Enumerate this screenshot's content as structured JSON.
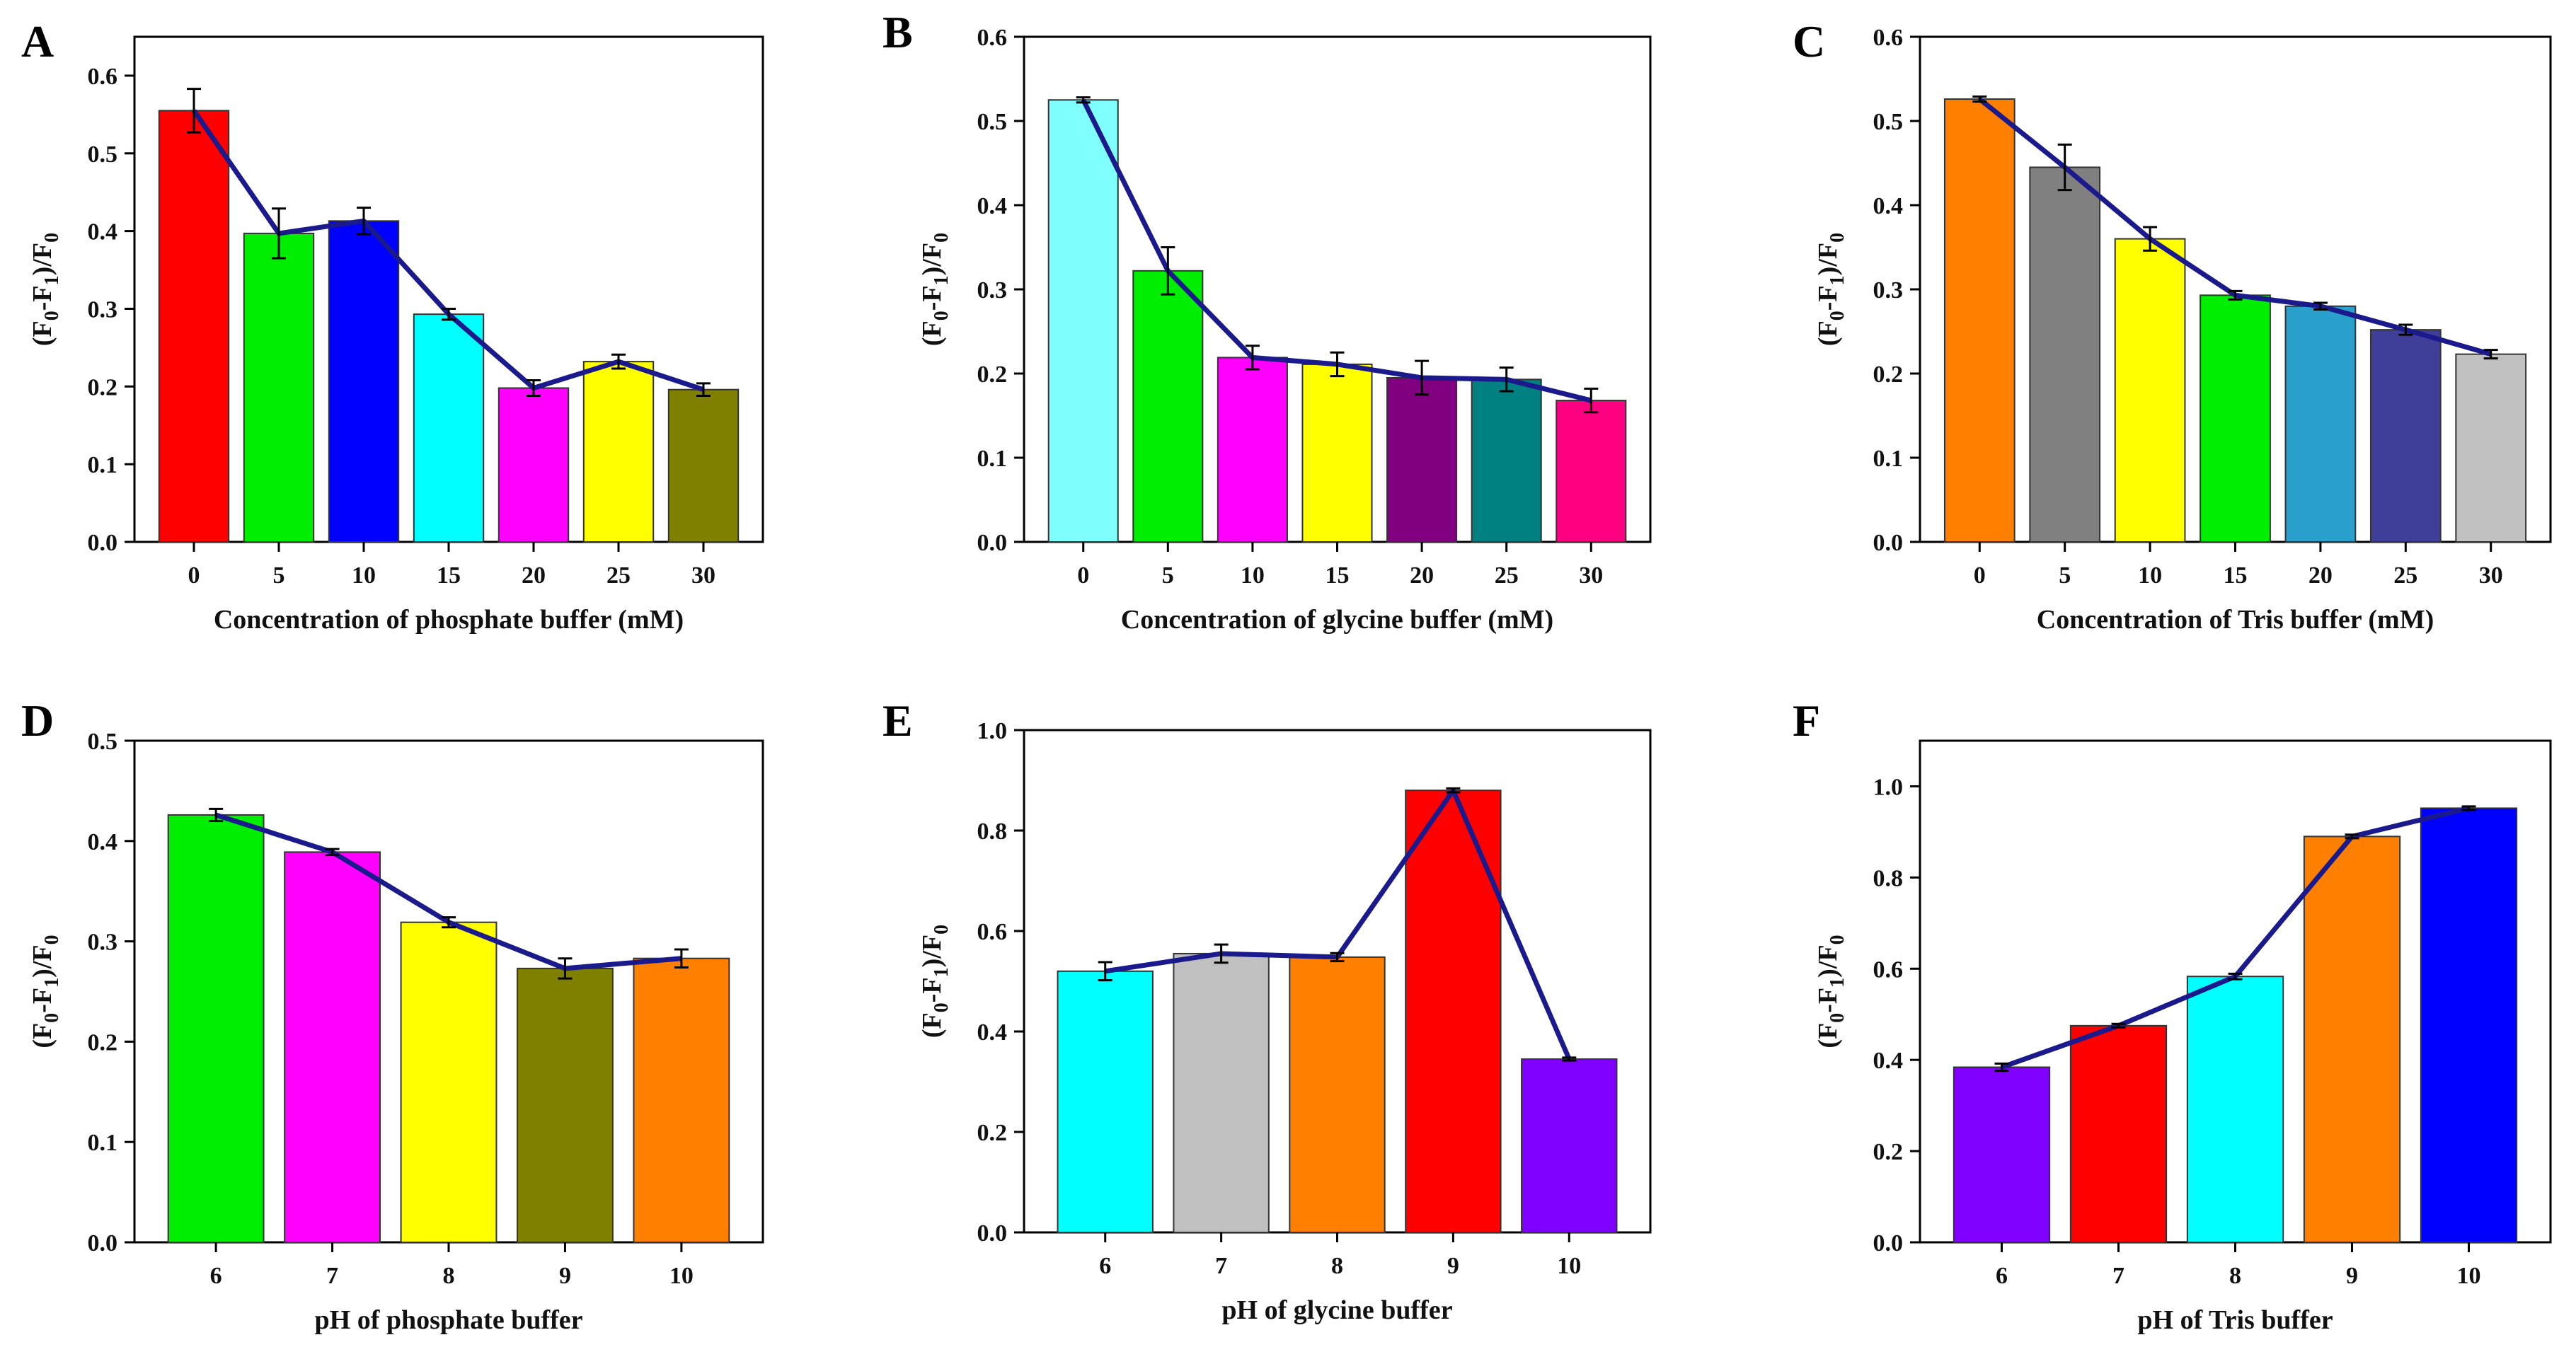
{
  "figure": {
    "line_color": "#1a1a8c",
    "bar_stroke": "#333333"
  },
  "chart_data": [
    {
      "panel": "A",
      "type": "bar",
      "categories": [
        "0",
        "5",
        "10",
        "15",
        "20",
        "25",
        "30"
      ],
      "values": [
        0.555,
        0.397,
        0.413,
        0.293,
        0.198,
        0.232,
        0.196
      ],
      "errors": [
        0.028,
        0.032,
        0.017,
        0.007,
        0.01,
        0.009,
        0.008
      ],
      "colors": [
        "#ff0000",
        "#00ee00",
        "#0000ff",
        "#00ffff",
        "#ff00ff",
        "#ffff00",
        "#808000"
      ],
      "xlabel": "Concentration of phosphate buffer (mM)",
      "ylabel_parts": [
        "(F",
        "0",
        "-F",
        "1",
        ")/F",
        "0"
      ],
      "ylim": [
        0,
        0.65
      ],
      "yticks": [
        "0.0",
        "0.1",
        "0.2",
        "0.3",
        "0.4",
        "0.5",
        "0.6"
      ],
      "ytick_values": [
        0,
        0.1,
        0.2,
        0.3,
        0.4,
        0.5,
        0.6
      ]
    },
    {
      "panel": "B",
      "type": "bar",
      "categories": [
        "0",
        "5",
        "10",
        "15",
        "20",
        "25",
        "30"
      ],
      "values": [
        0.525,
        0.322,
        0.219,
        0.211,
        0.195,
        0.193,
        0.168
      ],
      "errors": [
        0.003,
        0.028,
        0.014,
        0.014,
        0.02,
        0.014,
        0.014
      ],
      "colors": [
        "#80ffff",
        "#00ee00",
        "#ff00ff",
        "#ffff00",
        "#800080",
        "#008080",
        "#ff0080"
      ],
      "xlabel": "Concentration of glycine buffer (mM)",
      "ylabel_parts": [
        "(F",
        "0",
        "-F",
        "1",
        ")/F",
        "0"
      ],
      "ylim": [
        0,
        0.6
      ],
      "yticks": [
        "0.0",
        "0.1",
        "0.2",
        "0.3",
        "0.4",
        "0.5",
        "0.6"
      ],
      "ytick_values": [
        0,
        0.1,
        0.2,
        0.3,
        0.4,
        0.5,
        0.6
      ]
    },
    {
      "panel": "C",
      "type": "bar",
      "categories": [
        "0",
        "5",
        "10",
        "15",
        "20",
        "25",
        "30"
      ],
      "values": [
        0.526,
        0.445,
        0.36,
        0.293,
        0.28,
        0.252,
        0.223
      ],
      "errors": [
        0.003,
        0.027,
        0.014,
        0.005,
        0.004,
        0.006,
        0.005
      ],
      "colors": [
        "#ff8000",
        "#808080",
        "#ffff00",
        "#00ee00",
        "#2aa0cc",
        "#3f3f99",
        "#c0c0c0"
      ],
      "xlabel": "Concentration of Tris buffer (mM)",
      "ylabel_parts": [
        "(F",
        "0",
        "-F",
        "1",
        ")/F",
        "0"
      ],
      "ylim": [
        0,
        0.6
      ],
      "yticks": [
        "0.0",
        "0.1",
        "0.2",
        "0.3",
        "0.4",
        "0.5",
        "0.6"
      ],
      "ytick_values": [
        0,
        0.1,
        0.2,
        0.3,
        0.4,
        0.5,
        0.6
      ]
    },
    {
      "panel": "D",
      "type": "bar",
      "categories": [
        "6",
        "7",
        "8",
        "9",
        "10"
      ],
      "values": [
        0.426,
        0.389,
        0.319,
        0.273,
        0.283
      ],
      "errors": [
        0.006,
        0.003,
        0.005,
        0.01,
        0.009
      ],
      "colors": [
        "#00ee00",
        "#ff00ff",
        "#ffff00",
        "#808000",
        "#ff8000"
      ],
      "xlabel": "pH of phosphate buffer",
      "ylabel_parts": [
        "(F",
        "0",
        "-F",
        "1",
        ")/F",
        "0"
      ],
      "ylim": [
        0,
        0.5
      ],
      "yticks": [
        "0.0",
        "0.1",
        "0.2",
        "0.3",
        "0.4",
        "0.5"
      ],
      "ytick_values": [
        0,
        0.1,
        0.2,
        0.3,
        0.4,
        0.5
      ]
    },
    {
      "panel": "E",
      "type": "bar",
      "categories": [
        "6",
        "7",
        "8",
        "9",
        "10"
      ],
      "values": [
        0.52,
        0.555,
        0.548,
        0.88,
        0.345
      ],
      "errors": [
        0.018,
        0.018,
        0.008,
        0.004,
        0.003
      ],
      "colors": [
        "#00ffff",
        "#c0c0c0",
        "#ff8000",
        "#ff0000",
        "#8000ff"
      ],
      "xlabel": "pH of glycine buffer",
      "ylabel_parts": [
        "(F",
        "0",
        "-F",
        "1",
        ")/F",
        "0"
      ],
      "ylim": [
        0,
        1.0
      ],
      "yticks": [
        "0.0",
        "0.2",
        "0.4",
        "0.6",
        "0.8",
        "1.0"
      ],
      "ytick_values": [
        0,
        0.2,
        0.4,
        0.6,
        0.8,
        1.0
      ]
    },
    {
      "panel": "F",
      "type": "bar",
      "categories": [
        "6",
        "7",
        "8",
        "9",
        "10"
      ],
      "values": [
        0.384,
        0.475,
        0.583,
        0.89,
        0.952
      ],
      "errors": [
        0.008,
        0.004,
        0.006,
        0.004,
        0.004
      ],
      "colors": [
        "#8000ff",
        "#ff0000",
        "#00ffff",
        "#ff8000",
        "#0000ff"
      ],
      "xlabel": "pH of Tris buffer",
      "ylabel_parts": [
        "(F",
        "0",
        "-F",
        "1",
        ")/F",
        "0"
      ],
      "ylim": [
        0,
        1.1
      ],
      "yticks": [
        "0.0",
        "0.2",
        "0.4",
        "0.6",
        "0.8",
        "1.0"
      ],
      "ytick_values": [
        0,
        0.2,
        0.4,
        0.6,
        0.8,
        1.0
      ]
    }
  ]
}
